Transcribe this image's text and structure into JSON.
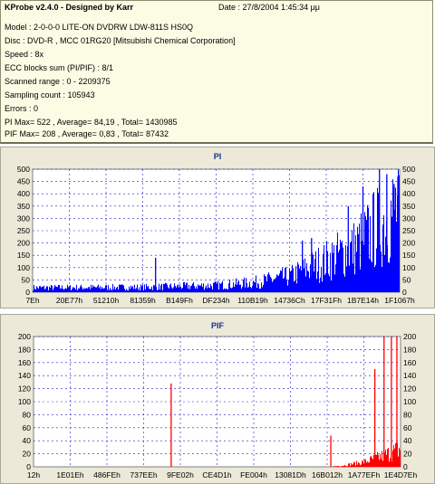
{
  "info": {
    "title": "KProbe v2.4.0 - Designed by Karr",
    "date": "Date : 27/8/2004 1:45:34 μμ",
    "lines": [
      "Model : 2-0-0-0 LITE-ON DVDRW LDW-811S   HS0Q",
      "Disc : DVD-R , MCC 01RG20   [Mitsubishi Chemical Corporation]",
      "Speed : 8x",
      "ECC blocks sum (PI/PIF) : 8/1",
      "Scanned range : 0 - 2209375",
      "Sampling count : 105943",
      "Errors : 0",
      "PI Max= 522 , Average= 84,19 , Total= 1430985",
      "PIF Max= 208 , Average= 0,83 , Total= 87432"
    ]
  },
  "colors": {
    "pi_series": "#0000ff",
    "pif_series": "#ff0000",
    "grid": "#1c1cc8",
    "panel": "#ece9d8",
    "plot_bg": "#ffffff"
  },
  "chart_data": [
    {
      "type": "area",
      "title": "PI",
      "series": [
        {
          "name": "",
          "color": "#0000ff"
        }
      ],
      "ylim": [
        0,
        500
      ],
      "yticks": [
        0,
        50,
        100,
        150,
        200,
        250,
        300,
        350,
        400,
        450,
        500
      ],
      "xlabels": [
        "7Eh",
        "20E77h",
        "51210h",
        "81359h",
        "B149Fh",
        "DF234h",
        "110B19h",
        "14736Ch",
        "17F31Fh",
        "1B7E14h",
        "1F1067h"
      ],
      "x_range": [
        126,
        2209375
      ],
      "grid": true,
      "profile": [
        [
          0,
          20
        ],
        [
          0.3,
          22
        ],
        [
          0.5,
          30
        ],
        [
          0.6,
          42
        ],
        [
          0.7,
          70
        ],
        [
          0.8,
          140
        ],
        [
          0.88,
          200
        ],
        [
          0.94,
          290
        ],
        [
          1.0,
          380
        ]
      ],
      "spikes": [
        [
          0.335,
          140
        ],
        [
          0.735,
          210
        ],
        [
          0.76,
          220
        ],
        [
          0.86,
          350
        ],
        [
          0.9,
          430
        ],
        [
          0.945,
          522
        ],
        [
          0.965,
          480
        ],
        [
          0.985,
          440
        ],
        [
          0.995,
          470
        ]
      ]
    },
    {
      "type": "bar",
      "title": "PIF",
      "series": [
        {
          "name": "",
          "color": "#ff0000"
        }
      ],
      "ylim": [
        0,
        200
      ],
      "yticks": [
        0,
        20,
        40,
        60,
        80,
        100,
        120,
        140,
        160,
        180,
        200
      ],
      "xlabels": [
        "12h",
        "1E01Eh",
        "486FEh",
        "737EEh",
        "9FE02h",
        "CE4D1h",
        "FE004h",
        "13081Dh",
        "16B012h",
        "1A77EFh",
        "1E4D7Eh"
      ],
      "x_range": [
        18,
        2209375
      ],
      "grid": true,
      "profile": [
        [
          0,
          0
        ],
        [
          0.8,
          0
        ],
        [
          0.84,
          2
        ],
        [
          0.9,
          8
        ],
        [
          0.95,
          18
        ],
        [
          1.0,
          30
        ]
      ],
      "spikes": [
        [
          0.375,
          128
        ],
        [
          0.81,
          48
        ],
        [
          0.93,
          150
        ],
        [
          0.955,
          208
        ],
        [
          0.975,
          200
        ],
        [
          0.99,
          205
        ]
      ]
    }
  ]
}
